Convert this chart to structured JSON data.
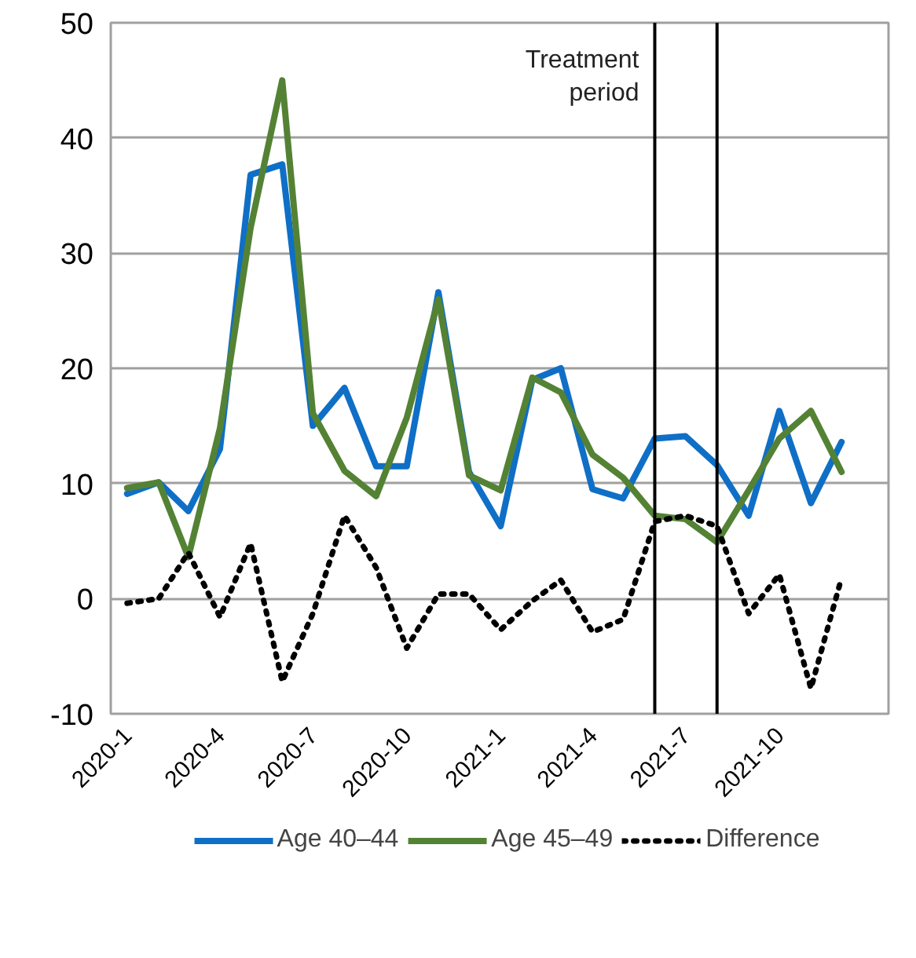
{
  "chart_data": {
    "type": "line",
    "x": [
      "2020-01",
      "2020-02",
      "2020-03",
      "2020-04",
      "2020-05",
      "2020-06",
      "2020-07",
      "2020-08",
      "2020-09",
      "2020-10",
      "2020-11",
      "2020-12",
      "2021-01",
      "2021-02",
      "2021-03",
      "2021-04",
      "2021-05",
      "2021-06",
      "2021-07",
      "2021-08",
      "2021-09",
      "2021-10",
      "2021-11",
      "2021-12"
    ],
    "series": [
      {
        "name": "Age 40–44",
        "color": "#0f6fc6",
        "line_style": "solid",
        "values": [
          9.1,
          10.1,
          7.6,
          13.0,
          36.8,
          37.7,
          15.0,
          18.3,
          11.5,
          11.5,
          26.6,
          11.0,
          6.3,
          19.0,
          20.0,
          9.5,
          8.7,
          13.9,
          14.1,
          11.6,
          7.2,
          16.3,
          8.3,
          13.6
        ]
      },
      {
        "name": "Age 45–49",
        "color": "#548235",
        "line_style": "solid",
        "values": [
          9.6,
          10.1,
          3.6,
          14.8,
          32.2,
          45.0,
          16.1,
          11.1,
          8.9,
          15.7,
          26.0,
          10.7,
          9.4,
          19.2,
          17.9,
          12.5,
          10.5,
          7.2,
          6.9,
          4.9,
          9.4,
          13.9,
          16.3,
          11.0
        ]
      },
      {
        "name": "Difference",
        "color": "#000000",
        "line_style": "dotted",
        "values": [
          -0.4,
          0.0,
          4.0,
          -1.6,
          4.8,
          -7.2,
          -1.3,
          7.2,
          2.7,
          -4.3,
          0.4,
          0.4,
          -2.7,
          -0.2,
          1.6,
          -2.9,
          -1.8,
          6.7,
          7.2,
          6.3,
          -1.3,
          2.1,
          -7.8,
          1.8
        ]
      }
    ],
    "xlim": [
      "2019-12-16",
      "2022-01-16"
    ],
    "xticks": [
      {
        "value": "2020-01",
        "label": "2020-1"
      },
      {
        "value": "2020-04",
        "label": "2020-4"
      },
      {
        "value": "2020-07",
        "label": "2020-7"
      },
      {
        "value": "2020-10",
        "label": "2020-10"
      },
      {
        "value": "2021-01",
        "label": "2021-1"
      },
      {
        "value": "2021-04",
        "label": "2021-4"
      },
      {
        "value": "2021-07",
        "label": "2021-7"
      },
      {
        "value": "2021-10",
        "label": "2021-10"
      }
    ],
    "ylim": [
      -10,
      50
    ],
    "yticks": [
      -10,
      0,
      10,
      20,
      30,
      40,
      50
    ],
    "ref_lines": [
      {
        "axis": "x",
        "value": "2021-06",
        "color": "#000000"
      },
      {
        "axis": "x",
        "value": "2021-08",
        "color": "#000000"
      }
    ],
    "annotations": [
      "Treatment\nperiod"
    ],
    "grid": "y",
    "legend": "bottom",
    "marker": "none"
  }
}
